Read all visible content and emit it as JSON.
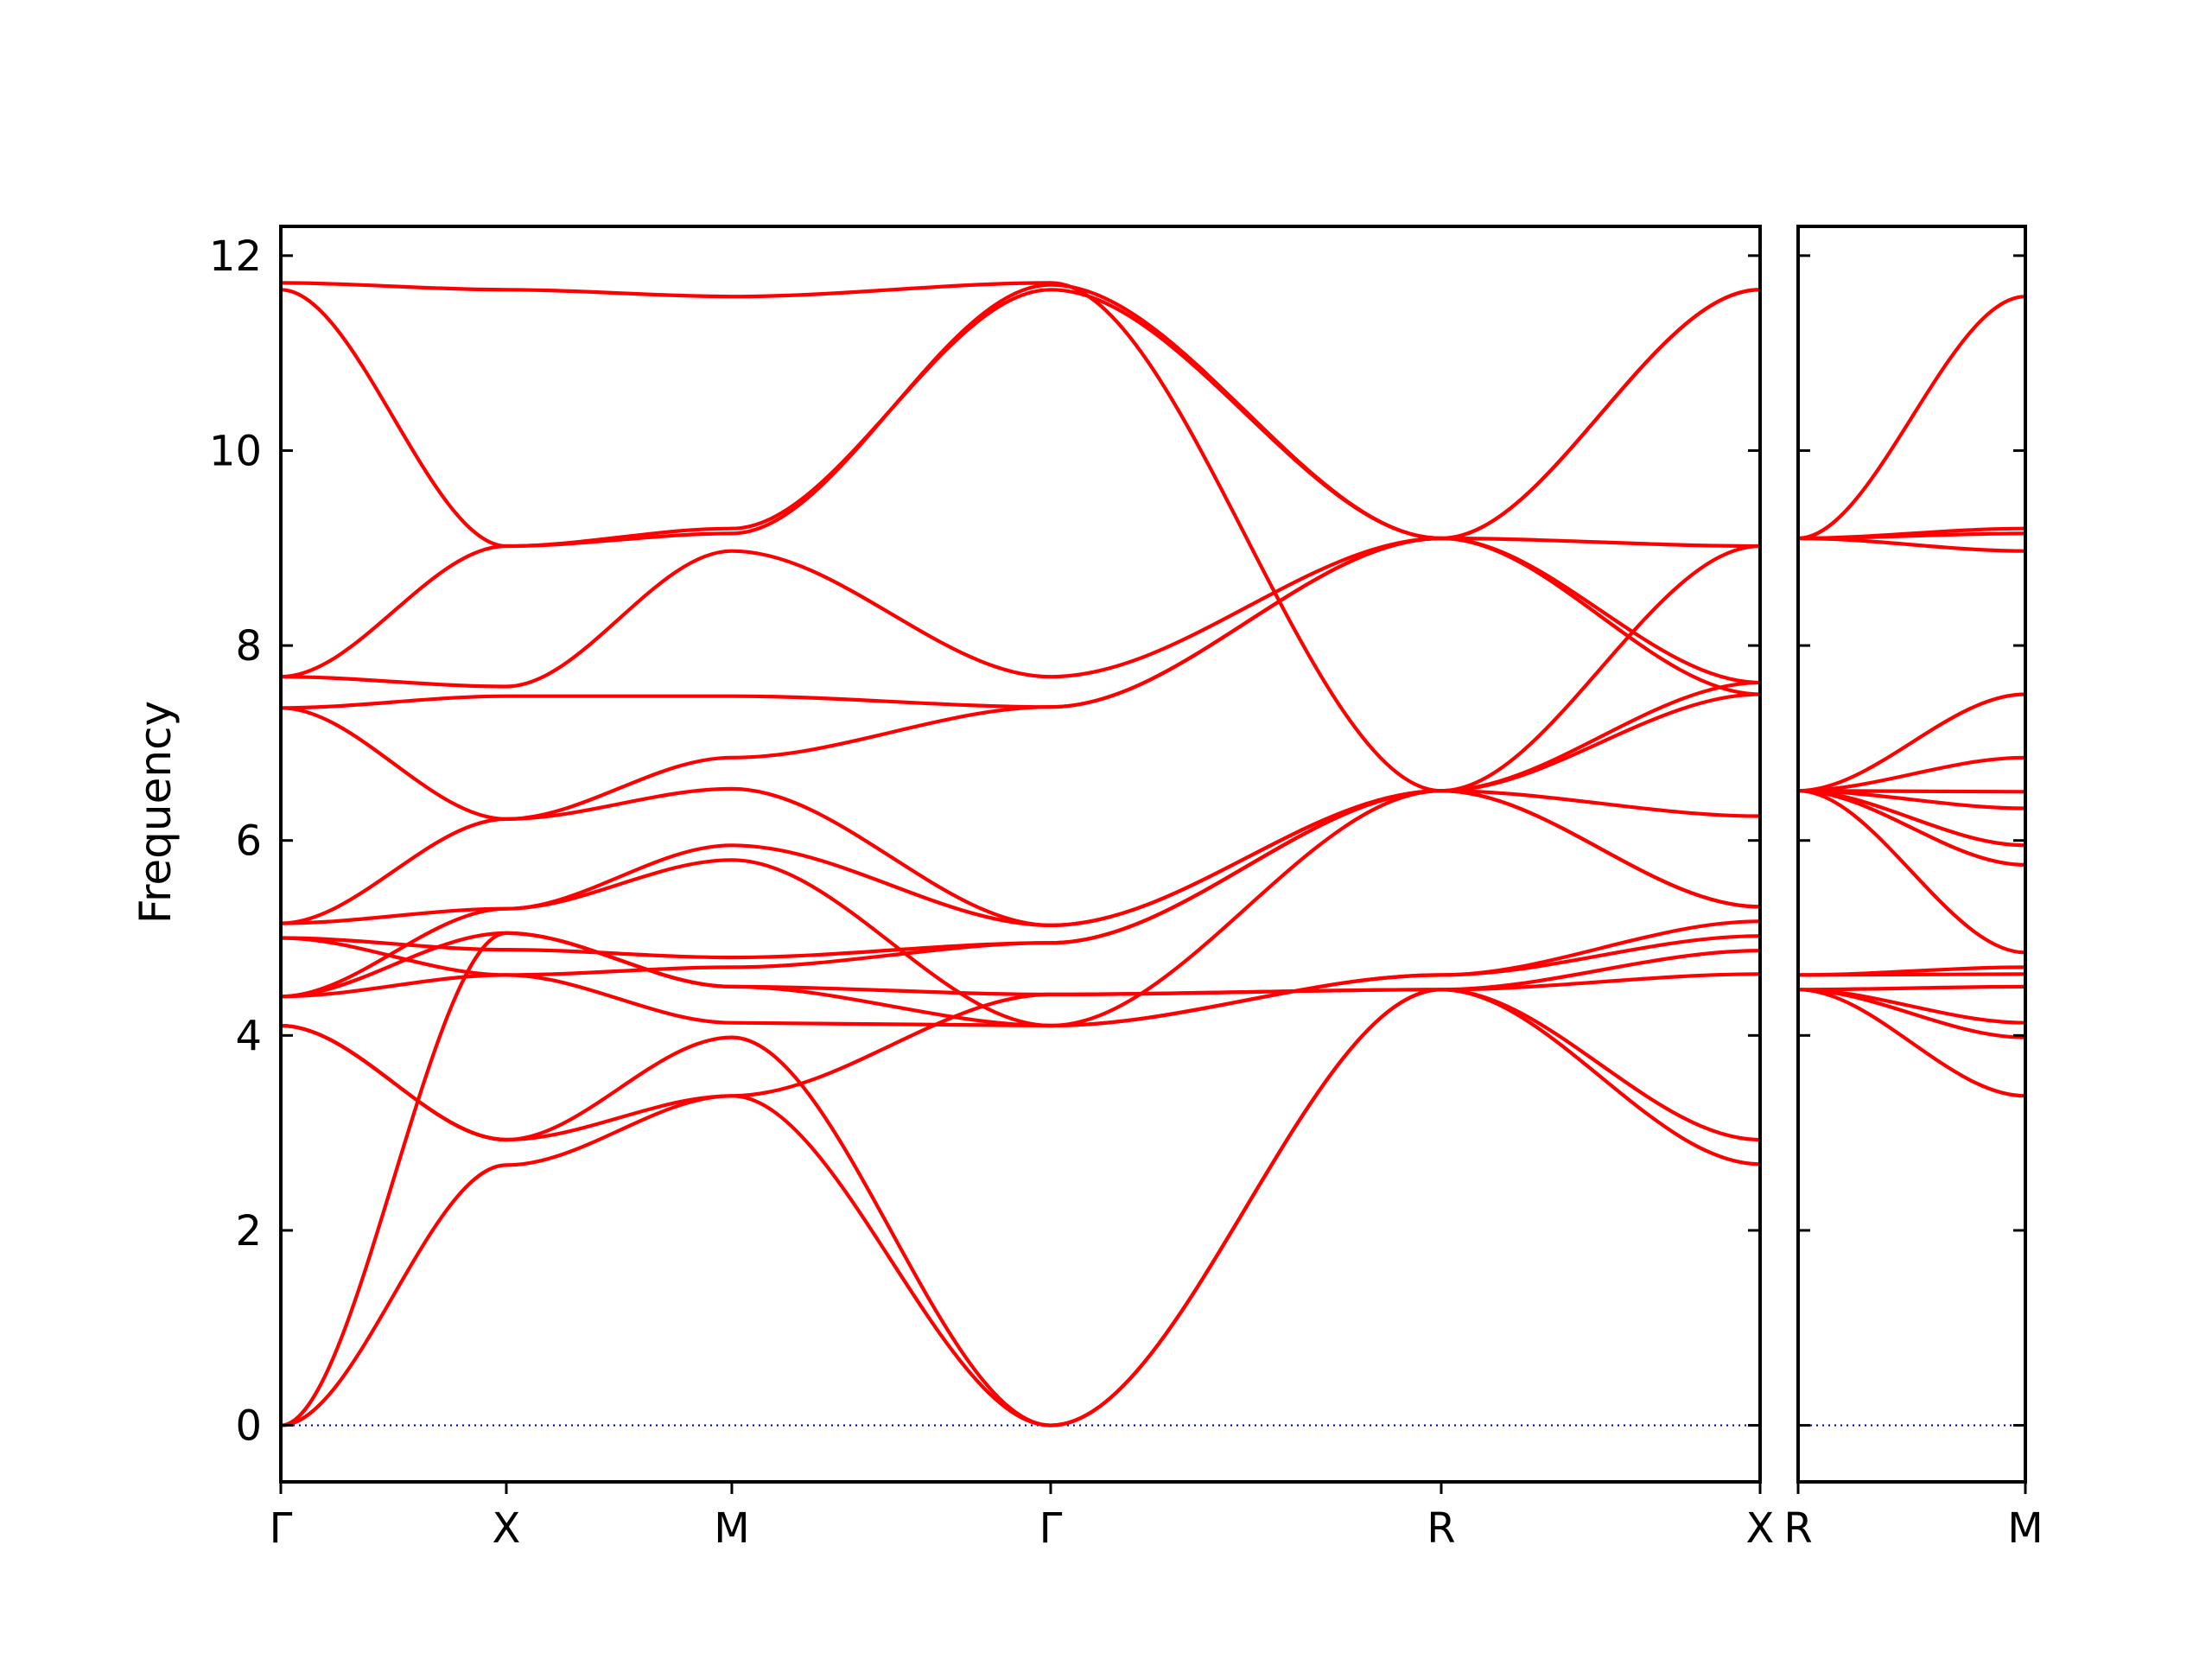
{
  "chart_data": {
    "type": "line",
    "ylabel": "Frequency",
    "ylim": [
      -0.58,
      12.3
    ],
    "yticks": [
      0,
      2,
      4,
      6,
      8,
      10,
      12
    ],
    "grid": false,
    "colors": {
      "bands": "#ff0000",
      "zero_line": "#0000cc",
      "axes": "#000000"
    },
    "panels": [
      {
        "id": "panel-main",
        "high_symmetry_points": [
          {
            "label": "Γ",
            "x": 0
          },
          {
            "label": "X",
            "x": 0.5
          },
          {
            "label": "M",
            "x": 1.0
          },
          {
            "label": "Γ",
            "x": 1.707
          },
          {
            "label": "R",
            "x": 2.573
          },
          {
            "label": "X",
            "x": 3.28
          }
        ],
        "bands": [
          [
            [
              0,
              0
            ],
            [
              0.5,
              2.67
            ],
            [
              1.0,
              3.38
            ],
            [
              1.707,
              4.42
            ],
            [
              2.573,
              4.47
            ],
            [
              3.28,
              2.68
            ]
          ],
          [
            [
              0,
              0
            ],
            [
              0.5,
              5.05
            ],
            [
              1.0,
              4.5
            ],
            [
              1.707,
              4.42
            ],
            [
              2.573,
              4.47
            ],
            [
              3.28,
              2.93
            ]
          ],
          [
            [
              0,
              4.1
            ],
            [
              0.5,
              2.93
            ],
            [
              1.0,
              3.38
            ],
            [
              1.707,
              0
            ],
            [
              2.573,
              4.47
            ],
            [
              3.28,
              4.63
            ]
          ],
          [
            [
              0,
              4.1
            ],
            [
              0.5,
              2.93
            ],
            [
              1.0,
              3.98
            ],
            [
              1.707,
              0
            ],
            [
              2.573,
              4.47
            ],
            [
              3.28,
              4.87
            ]
          ],
          [
            [
              0,
              4.4
            ],
            [
              0.5,
              5.05
            ],
            [
              1.0,
              4.5
            ],
            [
              1.707,
              4.1
            ],
            [
              2.573,
              4.62
            ],
            [
              3.28,
              5.02
            ]
          ],
          [
            [
              0,
              4.4
            ],
            [
              0.5,
              5.3
            ],
            [
              1.0,
              5.8
            ],
            [
              1.707,
              4.1
            ],
            [
              2.573,
              4.62
            ],
            [
              3.28,
              5.17
            ]
          ],
          [
            [
              0,
              4.4
            ],
            [
              0.5,
              4.62
            ],
            [
              1.0,
              4.13
            ],
            [
              1.707,
              4.1
            ],
            [
              2.573,
              6.51
            ],
            [
              3.28,
              5.32
            ]
          ],
          [
            [
              0,
              5.0
            ],
            [
              0.5,
              4.62
            ],
            [
              1.0,
              4.7
            ],
            [
              1.707,
              4.95
            ],
            [
              2.573,
              6.51
            ],
            [
              3.28,
              6.25
            ]
          ],
          [
            [
              0,
              5.0
            ],
            [
              0.5,
              4.88
            ],
            [
              1.0,
              4.8
            ],
            [
              1.707,
              4.95
            ],
            [
              2.573,
              6.51
            ],
            [
              3.28,
              7.5
            ]
          ],
          [
            [
              0,
              5.15
            ],
            [
              0.5,
              5.3
            ],
            [
              1.0,
              5.95
            ],
            [
              1.707,
              5.13
            ],
            [
              2.573,
              6.51
            ],
            [
              3.28,
              7.62
            ]
          ],
          [
            [
              0,
              5.15
            ],
            [
              0.5,
              6.22
            ],
            [
              1.0,
              6.53
            ],
            [
              1.707,
              5.13
            ],
            [
              2.573,
              6.51
            ],
            [
              3.28,
              9.02
            ]
          ],
          [
            [
              0,
              7.36
            ],
            [
              0.5,
              6.22
            ],
            [
              1.0,
              6.85
            ],
            [
              1.707,
              7.37
            ],
            [
              2.573,
              9.1
            ],
            [
              3.28,
              11.65
            ]
          ],
          [
            [
              0,
              7.36
            ],
            [
              0.5,
              7.48
            ],
            [
              1.0,
              7.48
            ],
            [
              1.707,
              7.37
            ],
            [
              2.573,
              9.1
            ],
            [
              3.28,
              11.65
            ]
          ],
          [
            [
              0,
              7.68
            ],
            [
              0.5,
              7.58
            ],
            [
              1.0,
              8.97
            ],
            [
              1.707,
              7.68
            ],
            [
              2.573,
              9.1
            ],
            [
              3.28,
              9.02
            ]
          ],
          [
            [
              0,
              7.68
            ],
            [
              0.5,
              9.02
            ],
            [
              1.0,
              9.2
            ],
            [
              1.707,
              11.65
            ],
            [
              2.573,
              9.1
            ],
            [
              3.28,
              7.5
            ]
          ],
          [
            [
              0,
              11.65
            ],
            [
              0.5,
              9.02
            ],
            [
              1.0,
              9.15
            ],
            [
              1.707,
              11.7
            ],
            [
              2.573,
              9.1
            ],
            [
              3.28,
              7.62
            ]
          ],
          [
            [
              0,
              11.72
            ],
            [
              0.5,
              11.65
            ],
            [
              1.0,
              11.58
            ],
            [
              1.707,
              11.72
            ],
            [
              2.573,
              6.51
            ],
            [
              3.28,
              5.32
            ]
          ]
        ]
      },
      {
        "id": "panel-right",
        "high_symmetry_points": [
          {
            "label": "R",
            "x": 0
          },
          {
            "label": "M",
            "x": 0.5
          }
        ],
        "bands": [
          [
            [
              0,
              4.47
            ],
            [
              0.5,
              3.38
            ]
          ],
          [
            [
              0,
              4.47
            ],
            [
              0.5,
              3.98
            ]
          ],
          [
            [
              0,
              4.47
            ],
            [
              0.5,
              4.13
            ]
          ],
          [
            [
              0,
              4.47
            ],
            [
              0.5,
              4.5
            ]
          ],
          [
            [
              0,
              4.62
            ],
            [
              0.5,
              4.63
            ]
          ],
          [
            [
              0,
              4.62
            ],
            [
              0.5,
              4.7
            ]
          ],
          [
            [
              0,
              6.51
            ],
            [
              0.5,
              4.85
            ]
          ],
          [
            [
              0,
              6.51
            ],
            [
              0.5,
              5.75
            ]
          ],
          [
            [
              0,
              6.51
            ],
            [
              0.5,
              5.95
            ]
          ],
          [
            [
              0,
              6.51
            ],
            [
              0.5,
              6.33
            ]
          ],
          [
            [
              0,
              6.51
            ],
            [
              0.5,
              6.5
            ]
          ],
          [
            [
              0,
              6.51
            ],
            [
              0.5,
              6.85
            ]
          ],
          [
            [
              0,
              6.51
            ],
            [
              0.5,
              7.5
            ]
          ],
          [
            [
              0,
              9.1
            ],
            [
              0.5,
              8.97
            ]
          ],
          [
            [
              0,
              9.1
            ],
            [
              0.5,
              9.15
            ]
          ],
          [
            [
              0,
              9.1
            ],
            [
              0.5,
              9.2
            ]
          ],
          [
            [
              0,
              9.1
            ],
            [
              0.5,
              11.58
            ]
          ]
        ]
      }
    ]
  }
}
